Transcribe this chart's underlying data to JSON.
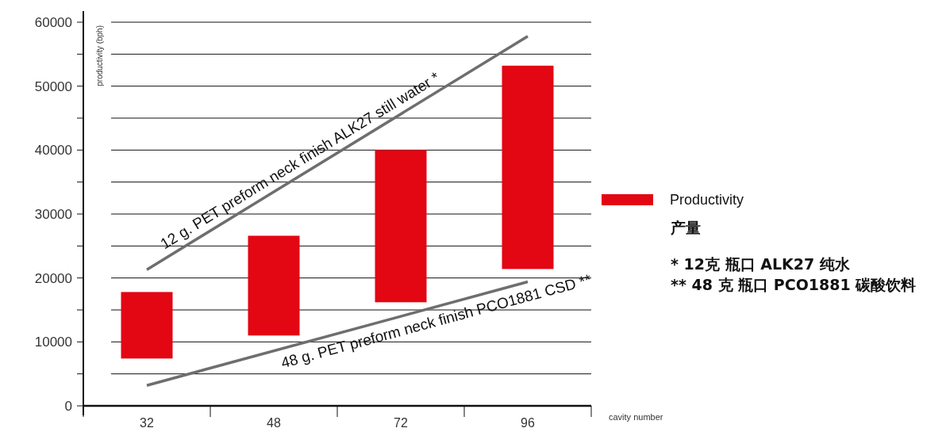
{
  "chart_data": {
    "type": "bar",
    "categories": [
      "32",
      "48",
      "72",
      "96"
    ],
    "series": [
      {
        "name": "Productivity",
        "color": "#e30613",
        "base": [
          7400,
          11000,
          16200,
          21400
        ],
        "values": [
          10400,
          15600,
          23800,
          31800
        ]
      },
      {
        "type": "line",
        "color": "#6e6e6e",
        "x": [
          "32",
          "96"
        ],
        "values": [
          21300,
          57800
        ]
      },
      {
        "type": "line",
        "color": "#6e6e6e",
        "x": [
          "32",
          "96"
        ],
        "values": [
          3200,
          19400
        ]
      }
    ],
    "ylabel": "productivity (bph)",
    "xlabel": "cavity number",
    "ylim": [
      0,
      60000
    ],
    "yticks": [
      0,
      {
        "value": 5000,
        "label": null
      },
      10000,
      {
        "value": 15000,
        "label": null
      },
      20000,
      {
        "value": 25000,
        "label": null
      },
      30000,
      {
        "value": 35000,
        "label": null
      },
      40000,
      {
        "value": 45000,
        "label": null
      },
      50000,
      {
        "value": 55000,
        "label": null
      },
      60000
    ],
    "grid": "y",
    "legend": "right",
    "marker": "none",
    "annotations": [
      "12 g. PET preform neck finish ALK27 still water *",
      "48 g. PET preform neck finish PCO1881 CSD **",
      "产量",
      "*   12克 瓶口 ALK27 纯水",
      "** 48 克 瓶口 PCO1881 碳酸饮料"
    ]
  }
}
